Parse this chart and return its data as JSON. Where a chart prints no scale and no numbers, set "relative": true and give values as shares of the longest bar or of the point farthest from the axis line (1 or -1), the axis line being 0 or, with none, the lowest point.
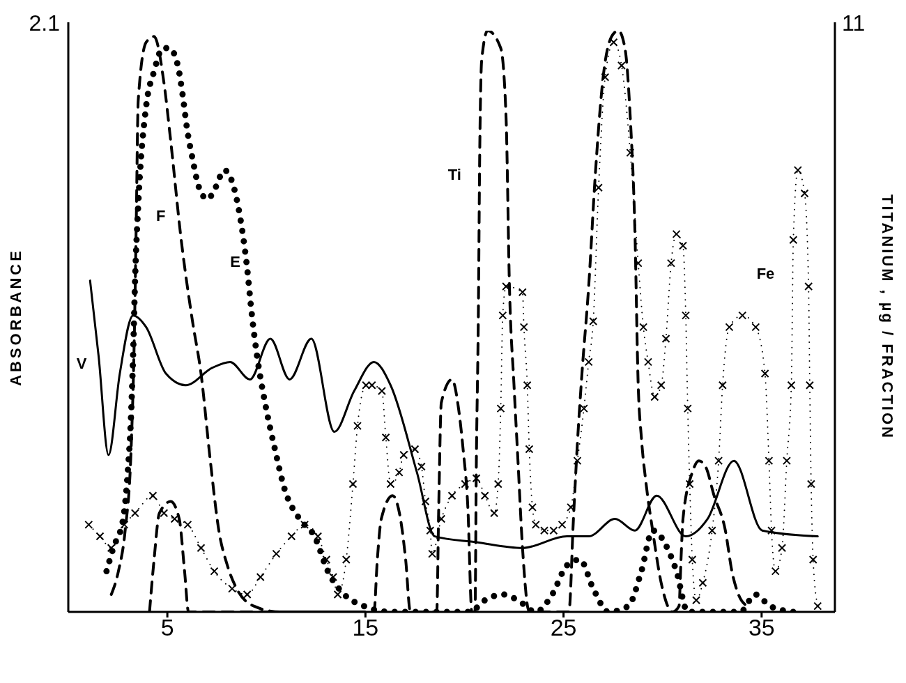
{
  "chart_data": {
    "type": "line",
    "relative": true,
    "ylabel": "ABSORBANCE",
    "y2label": "TITANIUM , µg / FRACTION",
    "xlim": [
      0,
      38.7
    ],
    "xticks": [
      5,
      15,
      25,
      35
    ],
    "annotations": [
      "2.1",
      "11",
      "V",
      "F",
      "E",
      "Ti",
      "Fe"
    ],
    "series": [
      {
        "color": "#000000",
        "line_style": "solid",
        "x": [
          1.1,
          1.53,
          2.03,
          2.6,
          3.27,
          3.93,
          4.93,
          5.93,
          7.27,
          8.17,
          9.17,
          10.2,
          11.17,
          12.27,
          13.43,
          14.43,
          15.43,
          16.27,
          17.6,
          18.5,
          20.6,
          22.93,
          25.17,
          26.27,
          27.6,
          28.6,
          29.7,
          31.17,
          32.27,
          33.6,
          35.03,
          37.83
        ],
        "values": [
          0.57,
          0.44,
          0.27,
          0.41,
          0.51,
          0.49,
          0.41,
          0.39,
          0.42,
          0.43,
          0.4,
          0.47,
          0.4,
          0.47,
          0.31,
          0.38,
          0.43,
          0.39,
          0.24,
          0.13,
          0.12,
          0.11,
          0.13,
          0.13,
          0.16,
          0.14,
          0.2,
          0.13,
          0.16,
          0.26,
          0.14,
          0.13
        ]
      },
      {
        "color": "#000000",
        "line_style": "dotted",
        "x": [
          1.93,
          2.27,
          2.77,
          3.0,
          3.17,
          3.27,
          3.37,
          3.53,
          3.93,
          4.33,
          4.77,
          5.1,
          5.53,
          5.77,
          6.0,
          6.27,
          6.6,
          7.03,
          7.43,
          7.87,
          8.27,
          8.67,
          9.0,
          9.27,
          9.53,
          9.93,
          10.43,
          10.93,
          11.67,
          12.43,
          13.1,
          13.93,
          14.93,
          16.27,
          18.93,
          20.27,
          21.03,
          21.93,
          22.7,
          23.6,
          24.43,
          25.17,
          25.83,
          26.5,
          27.27,
          28.27,
          28.93,
          29.5,
          30.37,
          30.7,
          31.27,
          33.93,
          34.67,
          35.43,
          36.6
        ],
        "values": [
          0.07,
          0.11,
          0.16,
          0.24,
          0.34,
          0.44,
          0.57,
          0.7,
          0.87,
          0.93,
          0.97,
          0.97,
          0.94,
          0.89,
          0.83,
          0.78,
          0.73,
          0.71,
          0.73,
          0.76,
          0.74,
          0.68,
          0.6,
          0.51,
          0.44,
          0.36,
          0.28,
          0.21,
          0.16,
          0.13,
          0.07,
          0.03,
          0.01,
          0,
          0,
          0,
          0.02,
          0.03,
          0.02,
          0,
          0.03,
          0.08,
          0.09,
          0.04,
          0,
          0.01,
          0.07,
          0.14,
          0.1,
          0.07,
          0,
          0,
          0.03,
          0.01,
          0
        ]
      },
      {
        "color": "#000000",
        "line_style": "dashed",
        "x": [
          2.17,
          2.53,
          2.87,
          3.17,
          3.33,
          3.43,
          3.53,
          3.93,
          4.33,
          4.83,
          5.17,
          5.7,
          6.27,
          6.7,
          7.17,
          7.6,
          8.03,
          8.5,
          9.37,
          10.7,
          11.93,
          14.6
        ],
        "values": [
          0.03,
          0.07,
          0.14,
          0.28,
          0.47,
          0.67,
          0.88,
          0.98,
          0.99,
          0.91,
          0.81,
          0.64,
          0.5,
          0.41,
          0.26,
          0.14,
          0.08,
          0.04,
          0.01,
          0,
          0,
          0
        ]
      },
      {
        "color": "#000000",
        "line_style": "dashed",
        "x": [
          4.1,
          4.33,
          4.6,
          5.17,
          5.6,
          5.87,
          6.07,
          15.43,
          15.6,
          15.8,
          16.37,
          16.77,
          17.03,
          17.27,
          18.6,
          18.7,
          18.83,
          19.37,
          19.7,
          19.93,
          20.17,
          20.37,
          20.53,
          20.6,
          20.7,
          20.77,
          20.87,
          21.17,
          21.83,
          22.1,
          22.27,
          22.5,
          22.7,
          22.93,
          23.27,
          25.27,
          25.5,
          25.7,
          25.93,
          26.27,
          26.6,
          27.0,
          27.43,
          27.77,
          28.1,
          28.37,
          28.6,
          28.77,
          28.93,
          29.17,
          29.5,
          29.93,
          30.5,
          30.83,
          30.93,
          31.03,
          31.5,
          31.83,
          32.17,
          32.6,
          33.17,
          33.5,
          33.83,
          34.27
        ],
        "values": [
          0,
          0.09,
          0.17,
          0.19,
          0.16,
          0.07,
          0,
          0,
          0.09,
          0.16,
          0.2,
          0.16,
          0.09,
          0,
          0,
          0.18,
          0.36,
          0.4,
          0.35,
          0.28,
          0.18,
          0,
          0,
          0.26,
          0.51,
          0.79,
          0.95,
          1.0,
          0.97,
          0.85,
          0.56,
          0.39,
          0.26,
          0.11,
          0,
          0,
          0.16,
          0.29,
          0.41,
          0.56,
          0.75,
          0.92,
          0.99,
          1.0,
          0.97,
          0.85,
          0.66,
          0.39,
          0.3,
          0.22,
          0.14,
          0.05,
          0,
          0.01,
          0.09,
          0.16,
          0.24,
          0.26,
          0.25,
          0.2,
          0.14,
          0.07,
          0.03,
          0.01
        ]
      },
      {
        "color": "#000000",
        "line_style": "dotted",
        "marker": "cross",
        "x": [
          1.03,
          1.6,
          2.17,
          2.83,
          3.37,
          4.27,
          4.83,
          5.37,
          6.03,
          6.7,
          7.37,
          8.27,
          9.03,
          9.7,
          10.5,
          11.27,
          11.93,
          12.6,
          13.03,
          13.37,
          13.6,
          14.03,
          14.37,
          14.6,
          15.03,
          15.33,
          15.83,
          16.03,
          16.27,
          16.7,
          16.93,
          17.5,
          17.83,
          18.03,
          18.27,
          18.37,
          18.83,
          19.37,
          20.03,
          20.6,
          21.03,
          21.5,
          21.7,
          21.83,
          21.93,
          22.1,
          22.93,
          23.0,
          23.17,
          23.27,
          23.43,
          23.6,
          24.03,
          24.5,
          24.93,
          25.37,
          25.7,
          26.03,
          26.27,
          26.5,
          26.77,
          27.1,
          27.53,
          27.93,
          28.37,
          28.77,
          29.03,
          29.27,
          29.6,
          29.93,
          30.17,
          30.43,
          30.7,
          31.03,
          31.17,
          31.27,
          31.37,
          31.5,
          31.7,
          32.03,
          32.5,
          32.83,
          33.03,
          33.37,
          34.03,
          34.7,
          35.17,
          35.37,
          35.5,
          35.7,
          36.03,
          36.27,
          36.5,
          36.6,
          36.83,
          37.17,
          37.37,
          37.43,
          37.5,
          37.6,
          37.83
        ],
        "values": [
          0.15,
          0.13,
          0.11,
          0.15,
          0.17,
          0.2,
          0.17,
          0.16,
          0.15,
          0.11,
          0.07,
          0.04,
          0.03,
          0.06,
          0.1,
          0.13,
          0.15,
          0.13,
          0.09,
          0.06,
          0.03,
          0.09,
          0.22,
          0.32,
          0.39,
          0.39,
          0.38,
          0.3,
          0.22,
          0.24,
          0.27,
          0.28,
          0.25,
          0.19,
          0.14,
          0.1,
          0.16,
          0.2,
          0.22,
          0.23,
          0.2,
          0.17,
          0.22,
          0.35,
          0.51,
          0.56,
          0.55,
          0.49,
          0.39,
          0.28,
          0.18,
          0.15,
          0.14,
          0.14,
          0.15,
          0.18,
          0.26,
          0.35,
          0.43,
          0.5,
          0.73,
          0.92,
          0.98,
          0.94,
          0.79,
          0.6,
          0.49,
          0.43,
          0.37,
          0.39,
          0.47,
          0.6,
          0.65,
          0.63,
          0.51,
          0.35,
          0.22,
          0.09,
          0.02,
          0.05,
          0.14,
          0.26,
          0.39,
          0.49,
          0.51,
          0.49,
          0.41,
          0.26,
          0.14,
          0.07,
          0.11,
          0.26,
          0.39,
          0.64,
          0.76,
          0.72,
          0.56,
          0.39,
          0.22,
          0.09,
          0.01
        ]
      }
    ]
  }
}
